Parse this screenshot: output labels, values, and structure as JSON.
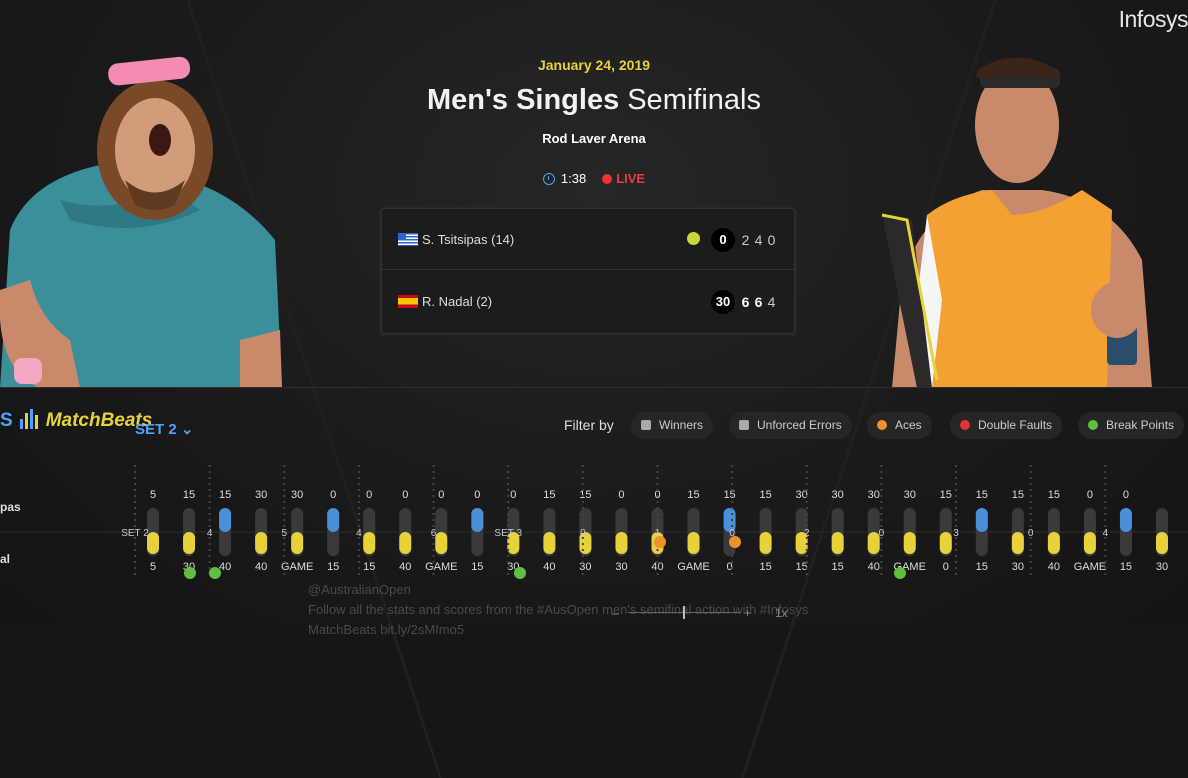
{
  "header": {
    "brand": "Infosys",
    "date": "January 24, 2019",
    "title_bold": "Men's Singles",
    "title_rest": "Semifinals",
    "venue": "Rod Laver Arena",
    "elapsed": "1:38",
    "status": "LIVE"
  },
  "scoreboard": {
    "players": [
      {
        "name": "S. Tsitsipas (14)",
        "country": "Greece",
        "points": "0",
        "serving": true,
        "sets": [
          "2",
          "4",
          "0"
        ]
      },
      {
        "name": "R. Nadal (2)",
        "country": "Spain",
        "points": "30",
        "serving": false,
        "sets": [
          "6",
          "6",
          "4"
        ]
      }
    ]
  },
  "matchbeats": {
    "logo_prefix": "S",
    "logo": "MatchBeats",
    "set_selector": "SET 2",
    "filter_label": "Filter by",
    "filters": [
      {
        "label": "Winners",
        "icon": "thumbs-up-icon",
        "color": "#aaaaaa"
      },
      {
        "label": "Unforced Errors",
        "icon": "thumbs-down-icon",
        "color": "#aaaaaa"
      },
      {
        "label": "Aces",
        "icon": "ace-ball-icon",
        "color": "#f0902a"
      },
      {
        "label": "Double Faults",
        "icon": "double-fault-icon",
        "color": "#e33333"
      },
      {
        "label": "Break Points",
        "icon": "break-point-icon",
        "color": "#5fbf3f"
      }
    ],
    "player_labels": [
      "pas",
      "al"
    ]
  },
  "timeline": {
    "top_labels": [
      "5",
      "15",
      "15",
      "30",
      "30",
      "0",
      "0",
      "0",
      "0",
      "0",
      "0",
      "15",
      "15",
      "0",
      "0",
      "15",
      "15",
      "15",
      "30",
      "30",
      "30",
      "30",
      "15",
      "15",
      "15",
      "15",
      "0",
      "0"
    ],
    "bottom_labels": [
      "5",
      "30",
      "40",
      "40",
      "GAME",
      "15",
      "15",
      "40",
      "GAME",
      "15",
      "30",
      "40",
      "30",
      "30",
      "40",
      "GAME",
      "0",
      "15",
      "15",
      "15",
      "40",
      "GAME",
      "0",
      "15",
      "30",
      "40",
      "GAME",
      "15",
      "30"
    ],
    "game_markers": [
      "SET 2",
      "4",
      "5",
      "4",
      "6",
      "SET 3",
      "0",
      "1",
      "0",
      "2",
      "0",
      "3",
      "0",
      "4"
    ]
  },
  "tweet": {
    "handle": "@AustralianOpen",
    "text": "Follow all the stats and scores from the #AusOpen men's semifinal action with #Infosys",
    "text2": "MatchBeats",
    "link": "bit.ly/2sMImo5"
  },
  "zoom": {
    "minus": "–",
    "plus": "+",
    "level": "1x"
  },
  "colors": {
    "accent": "#e8d23c",
    "blue": "#4da3ff",
    "live": "#f03a3a",
    "tsitsipas": "#4b8fd8",
    "nadal": "#e8d23c"
  }
}
